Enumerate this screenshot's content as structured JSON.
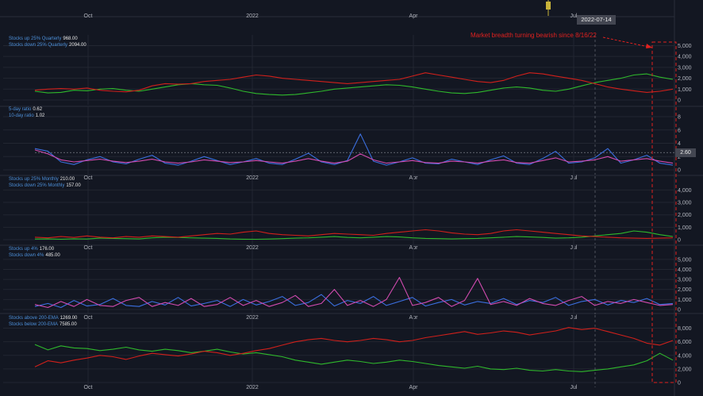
{
  "annotation": "Market breadth turning bearish since 8/16/22",
  "crosshair_date": "2022-07-14",
  "colors": {
    "background": "#131722",
    "grid": "#222631",
    "red": "#d0201b",
    "green": "#2fb82c",
    "blue": "#3b6fe0",
    "pink": "#d24bb0",
    "annotation": "#e0211f"
  },
  "chart_data": [
    {
      "type": "line",
      "title": "",
      "x_ticks": [
        "Oct",
        "2022",
        "Apr",
        "Jul"
      ],
      "y_ticks": [
        "0",
        "1,000",
        "2,000",
        "3,000",
        "4,000",
        "5,000"
      ],
      "ylim": [
        0,
        5400
      ],
      "legend": [
        {
          "label": "Stocks up 25% Quarterly",
          "value": "968.00"
        },
        {
          "label": "Stocks down 25% Quarterly",
          "value": "2094.00"
        }
      ],
      "series": [
        {
          "color": "#2fb82c",
          "values": [
            800,
            650,
            700,
            900,
            850,
            1000,
            1050,
            900,
            800,
            1000,
            1200,
            1400,
            1500,
            1400,
            1350,
            1100,
            800,
            600,
            500,
            450,
            500,
            650,
            800,
            1000,
            1100,
            1200,
            1300,
            1400,
            1350,
            1200,
            1000,
            800,
            650,
            600,
            700,
            900,
            1100,
            1200,
            1100,
            900,
            800,
            1000,
            1300,
            1600,
            1800,
            2000,
            2300,
            2400,
            2100,
            1900
          ]
        },
        {
          "color": "#d0201b",
          "values": [
            900,
            1000,
            1050,
            1000,
            1100,
            900,
            800,
            750,
            900,
            1300,
            1500,
            1450,
            1500,
            1700,
            1800,
            1900,
            2100,
            2300,
            2200,
            2000,
            1900,
            1800,
            1700,
            1600,
            1500,
            1600,
            1700,
            1800,
            1900,
            2200,
            2500,
            2300,
            2100,
            1900,
            1700,
            1600,
            1800,
            2200,
            2500,
            2400,
            2200,
            2000,
            1800,
            1500,
            1200,
            1000,
            850,
            700,
            800,
            1000
          ]
        }
      ]
    },
    {
      "type": "line",
      "title": "",
      "x_ticks": [
        "Oct",
        "2022",
        "Apr",
        "Jul"
      ],
      "y_ticks": [
        "0",
        "2",
        "4",
        "6",
        "8"
      ],
      "ylim": [
        0,
        8.6
      ],
      "reference_line": 2.6,
      "last_value_tag": "2.60",
      "legend": [
        {
          "label": "5-day ratio",
          "value": "0.62"
        },
        {
          "label": "10-day ratio",
          "value": "1.02"
        }
      ],
      "series": [
        {
          "color": "#3b6fe0",
          "values": [
            3.2,
            2.8,
            1.2,
            0.8,
            1.5,
            2.0,
            1.2,
            0.9,
            1.6,
            2.2,
            1.0,
            0.7,
            1.3,
            2.0,
            1.4,
            0.8,
            1.2,
            1.7,
            1.0,
            0.8,
            1.6,
            2.5,
            1.2,
            0.8,
            1.4,
            5.4,
            1.3,
            0.7,
            1.2,
            1.8,
            1.0,
            0.9,
            1.6,
            1.2,
            0.8,
            1.5,
            2.1,
            1.0,
            0.8,
            1.7,
            2.8,
            1.0,
            1.2,
            1.8,
            3.2,
            1.0,
            1.5,
            2.2,
            1.0,
            0.7
          ]
        },
        {
          "color": "#d24bb0",
          "values": [
            3.0,
            2.4,
            1.5,
            1.2,
            1.4,
            1.6,
            1.3,
            1.1,
            1.3,
            1.6,
            1.2,
            1.0,
            1.2,
            1.5,
            1.3,
            1.1,
            1.2,
            1.4,
            1.2,
            1.0,
            1.3,
            1.7,
            1.3,
            1.0,
            1.3,
            2.4,
            1.5,
            1.0,
            1.2,
            1.4,
            1.1,
            1.0,
            1.3,
            1.2,
            1.0,
            1.3,
            1.5,
            1.1,
            1.0,
            1.4,
            1.8,
            1.2,
            1.3,
            1.5,
            2.0,
            1.3,
            1.5,
            1.7,
            1.3,
            1.0
          ]
        }
      ]
    },
    {
      "type": "line",
      "title": "",
      "x_ticks": [
        "Oct",
        "2022",
        "Apr",
        "Jul"
      ],
      "y_ticks": [
        "0",
        "1,000",
        "2,000",
        "3,000",
        "4,000"
      ],
      "ylim": [
        0,
        4600
      ],
      "legend": [
        {
          "label": "Stocks up 25% Monthly",
          "value": "210.00"
        },
        {
          "label": "Stocks down 25% Monthly",
          "value": "157.00"
        }
      ],
      "series": [
        {
          "color": "#2fb82c",
          "values": [
            50,
            60,
            40,
            70,
            50,
            120,
            100,
            80,
            60,
            150,
            200,
            180,
            150,
            120,
            100,
            60,
            40,
            30,
            50,
            80,
            120,
            150,
            200,
            250,
            180,
            150,
            200,
            250,
            220,
            150,
            100,
            80,
            60,
            80,
            100,
            150,
            200,
            250,
            220,
            180,
            120,
            150,
            200,
            300,
            400,
            500,
            700,
            600,
            400,
            250
          ]
        },
        {
          "color": "#d0201b",
          "values": [
            200,
            150,
            250,
            180,
            300,
            200,
            150,
            250,
            200,
            300,
            250,
            200,
            300,
            400,
            500,
            450,
            600,
            700,
            500,
            400,
            350,
            300,
            400,
            500,
            450,
            400,
            350,
            500,
            600,
            700,
            800,
            700,
            550,
            450,
            400,
            500,
            700,
            800,
            700,
            600,
            500,
            400,
            300,
            250,
            200,
            150,
            120,
            100,
            120,
            150
          ]
        }
      ]
    },
    {
      "type": "line",
      "title": "",
      "x_ticks": [
        "Oct",
        "2022",
        "Apr",
        "Jul"
      ],
      "y_ticks": [
        "0",
        "1,000",
        "2,000",
        "3,000",
        "4,000",
        "5,000"
      ],
      "ylim": [
        0,
        5700
      ],
      "legend": [
        {
          "label": "Stocks up 4%",
          "value": "176.00"
        },
        {
          "label": "Stocks down 4%",
          "value": "485.00"
        }
      ],
      "series": [
        {
          "color": "#3b6fe0",
          "values": [
            300,
            600,
            200,
            900,
            350,
            500,
            1100,
            400,
            300,
            800,
            450,
            1200,
            350,
            600,
            900,
            300,
            1000,
            450,
            800,
            1300,
            400,
            700,
            1500,
            350,
            900,
            600,
            1300,
            400,
            800,
            1200,
            350,
            700,
            1000,
            450,
            800,
            600,
            1100,
            500,
            900,
            700,
            1200,
            400,
            800,
            1000,
            450,
            900,
            700,
            1100,
            500,
            600
          ]
        },
        {
          "color": "#d24bb0",
          "values": [
            500,
            200,
            800,
            300,
            1000,
            400,
            300,
            900,
            1200,
            300,
            700,
            400,
            1100,
            300,
            500,
            1200,
            400,
            900,
            300,
            700,
            1400,
            300,
            600,
            2000,
            400,
            900,
            300,
            1000,
            3200,
            400,
            700,
            1200,
            300,
            900,
            3100,
            500,
            800,
            400,
            1100,
            600,
            400,
            900,
            1300,
            400,
            800,
            600,
            1000,
            700,
            400,
            500
          ]
        }
      ]
    },
    {
      "type": "line",
      "title": "",
      "x_ticks": [
        "Oct",
        "2022",
        "Apr",
        "Jul"
      ],
      "y_ticks": [
        "0",
        "2,000",
        "4,000",
        "6,000",
        "8,000"
      ],
      "ylim": [
        0,
        9000
      ],
      "legend": [
        {
          "label": "Stocks above 200-EMA",
          "value": "1269.00"
        },
        {
          "label": "Stocks below 200-EMA",
          "value": "7585.00"
        }
      ],
      "series": [
        {
          "color": "#2fb82c",
          "values": [
            5600,
            4800,
            5400,
            5100,
            5000,
            4700,
            4900,
            5200,
            4800,
            4600,
            4900,
            4700,
            4400,
            4600,
            4900,
            4500,
            4200,
            4400,
            4100,
            3800,
            3300,
            3000,
            2700,
            3000,
            3300,
            3100,
            2800,
            3000,
            3300,
            3100,
            2800,
            2500,
            2300,
            2100,
            2400,
            2000,
            1900,
            2100,
            1800,
            1700,
            1900,
            1700,
            1600,
            1800,
            2000,
            2300,
            2600,
            3200,
            4300,
            3300
          ]
        },
        {
          "color": "#d0201b",
          "values": [
            2300,
            3200,
            2900,
            3300,
            3600,
            4000,
            3800,
            3400,
            3900,
            4300,
            4100,
            3900,
            4200,
            4600,
            4400,
            4000,
            4300,
            4700,
            5000,
            5500,
            6000,
            6300,
            6500,
            6200,
            6000,
            6200,
            6500,
            6300,
            6000,
            6200,
            6600,
            6900,
            7200,
            7500,
            7100,
            7300,
            7600,
            7400,
            7000,
            7300,
            7600,
            8100,
            7800,
            8000,
            7500,
            7000,
            6500,
            5800,
            5500,
            6200
          ]
        }
      ]
    }
  ]
}
